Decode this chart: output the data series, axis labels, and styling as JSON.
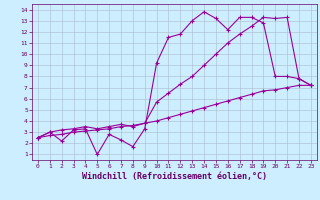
{
  "xlabel": "Windchill (Refroidissement éolien,°C)",
  "bg_color": "#cceeff",
  "line_color": "#990099",
  "grid_color": "#aabbcc",
  "xlim": [
    -0.5,
    23.5
  ],
  "ylim": [
    0.5,
    14.5
  ],
  "xticks": [
    0,
    1,
    2,
    3,
    4,
    5,
    6,
    7,
    8,
    9,
    10,
    11,
    12,
    13,
    14,
    15,
    16,
    17,
    18,
    19,
    20,
    21,
    22,
    23
  ],
  "yticks": [
    1,
    2,
    3,
    4,
    5,
    6,
    7,
    8,
    9,
    10,
    11,
    12,
    13,
    14
  ],
  "line1_x": [
    0,
    1,
    2,
    3,
    4,
    5,
    6,
    7,
    8,
    9,
    10,
    11,
    12,
    13,
    14,
    15,
    16,
    17,
    18,
    19,
    20,
    21,
    22,
    23
  ],
  "line1_y": [
    2.5,
    3.0,
    2.2,
    3.2,
    3.3,
    1.0,
    2.8,
    2.3,
    1.7,
    3.3,
    9.2,
    11.5,
    11.8,
    13.0,
    13.8,
    13.2,
    12.2,
    13.3,
    13.3,
    12.8,
    8.0,
    8.0,
    7.8,
    7.2
  ],
  "line2_x": [
    0,
    1,
    2,
    3,
    4,
    5,
    6,
    7,
    8,
    9,
    10,
    11,
    12,
    13,
    14,
    15,
    16,
    17,
    18,
    19,
    20,
    21,
    22,
    23
  ],
  "line2_y": [
    2.5,
    3.0,
    3.2,
    3.3,
    3.5,
    3.3,
    3.5,
    3.7,
    3.5,
    3.8,
    5.7,
    6.5,
    7.3,
    8.0,
    9.0,
    10.0,
    11.0,
    11.8,
    12.5,
    13.3,
    13.2,
    13.3,
    7.8,
    7.2
  ],
  "line3_x": [
    0,
    1,
    2,
    3,
    4,
    5,
    6,
    7,
    8,
    9,
    10,
    11,
    12,
    13,
    14,
    15,
    16,
    17,
    18,
    19,
    20,
    21,
    22,
    23
  ],
  "line3_y": [
    2.5,
    2.7,
    2.8,
    3.0,
    3.1,
    3.2,
    3.3,
    3.5,
    3.6,
    3.8,
    4.0,
    4.3,
    4.6,
    4.9,
    5.2,
    5.5,
    5.8,
    6.1,
    6.4,
    6.7,
    6.8,
    7.0,
    7.2,
    7.2
  ],
  "marker": "+",
  "markersize": 3,
  "linewidth": 0.8,
  "font_color": "#660066",
  "tick_fontsize": 4.5,
  "xlabel_fontsize": 6.0
}
